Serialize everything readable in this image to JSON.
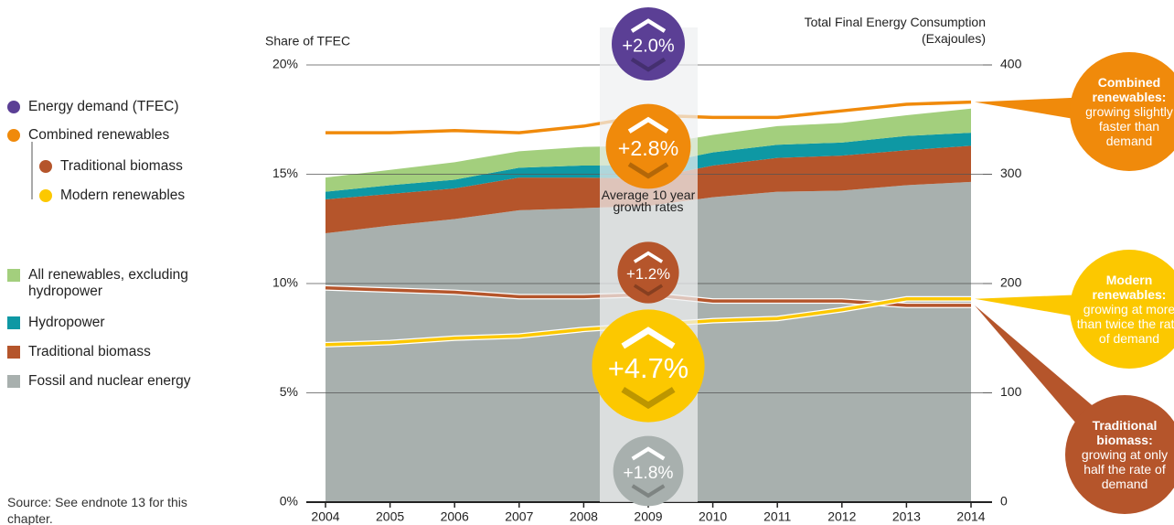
{
  "chart_data": {
    "type": "area",
    "ylabel": "Share of TFEC",
    "y2label": "Total Final Energy Consumption (Exajoules)",
    "x": [
      2004,
      2005,
      2006,
      2007,
      2008,
      2009,
      2010,
      2011,
      2012,
      2013,
      2014
    ],
    "xlim": [
      2004,
      2014
    ],
    "ylim": [
      0,
      20
    ],
    "yticks": [
      {
        "value": 0,
        "label": "0%"
      },
      {
        "value": 5,
        "label": "5%"
      },
      {
        "value": 10,
        "label": "10%"
      },
      {
        "value": 15,
        "label": "15%"
      },
      {
        "value": 20,
        "label": "20%"
      }
    ],
    "y2lim": [
      0,
      400
    ],
    "y2ticks": [
      0,
      100,
      200,
      300,
      400
    ],
    "grid": true,
    "series": [
      {
        "name": "Fossil and nuclear energy",
        "color": "#a8b0ae",
        "axis": "y2",
        "kind": "area",
        "values": [
          246,
          253,
          259,
          267,
          269,
          271,
          279,
          284,
          285,
          290,
          293
        ]
      },
      {
        "name": "Traditional biomass",
        "color": "#b5552b",
        "axis": "y2",
        "kind": "area",
        "values": [
          31,
          29,
          28,
          30,
          28,
          25,
          29,
          31,
          32,
          32,
          33
        ]
      },
      {
        "name": "Hydropower",
        "color": "#0e98a4",
        "axis": "y2",
        "kind": "area",
        "values": [
          7,
          8,
          8,
          9,
          11,
          12,
          12,
          12,
          12,
          13,
          12
        ]
      },
      {
        "name": "All renewables, excluding hydropower",
        "color": "#a3cf7d",
        "axis": "y2",
        "kind": "area",
        "values": [
          13,
          14,
          16,
          15,
          17,
          18,
          16,
          17,
          18,
          19,
          22
        ]
      },
      {
        "name": "Combined renewables",
        "color": "#f08a0b",
        "kind": "line",
        "values": [
          16.9,
          16.9,
          17.0,
          16.9,
          17.2,
          17.7,
          17.6,
          17.6,
          17.9,
          18.2,
          18.3
        ]
      },
      {
        "name": "Traditional biomass",
        "color": "#b5552b",
        "kind": "line",
        "values": [
          9.8,
          9.7,
          9.6,
          9.4,
          9.4,
          9.5,
          9.2,
          9.2,
          9.2,
          9.0,
          9.0
        ]
      },
      {
        "name": "Modern renewables",
        "color": "#fcc800",
        "kind": "line",
        "values": [
          7.2,
          7.3,
          7.5,
          7.6,
          7.9,
          8.1,
          8.3,
          8.4,
          8.8,
          9.3,
          9.3
        ]
      }
    ],
    "legend_extra": {
      "name": "Energy demand (TFEC)",
      "color": "#5b3f95"
    },
    "highlight_x": 2009,
    "growth_caption": "Average 10 year growth rates",
    "growth_rates": [
      {
        "label": "+2.0%",
        "value": 2.0,
        "color": "#5b3f95"
      },
      {
        "label": "+2.8%",
        "value": 2.8,
        "color": "#f08a0b"
      },
      {
        "label": "+1.2%",
        "value": 1.2,
        "color": "#b5552b"
      },
      {
        "label": "+4.7%",
        "value": 4.7,
        "color": "#fcc800"
      },
      {
        "label": "+1.8%",
        "value": 1.8,
        "color": "#a8b0ae"
      }
    ],
    "annotations": [
      {
        "series": 4,
        "title": "Combined renewables:",
        "text": "growing slightly faster than demand"
      },
      {
        "series": 6,
        "title": "Modern renewables:",
        "text": "growing at more than twice the rate of demand"
      },
      {
        "series": 5,
        "title": "Traditional biomass:",
        "text": "growing at only half the rate of demand"
      }
    ],
    "source": "Source: See endnote 13 for this chapter."
  }
}
